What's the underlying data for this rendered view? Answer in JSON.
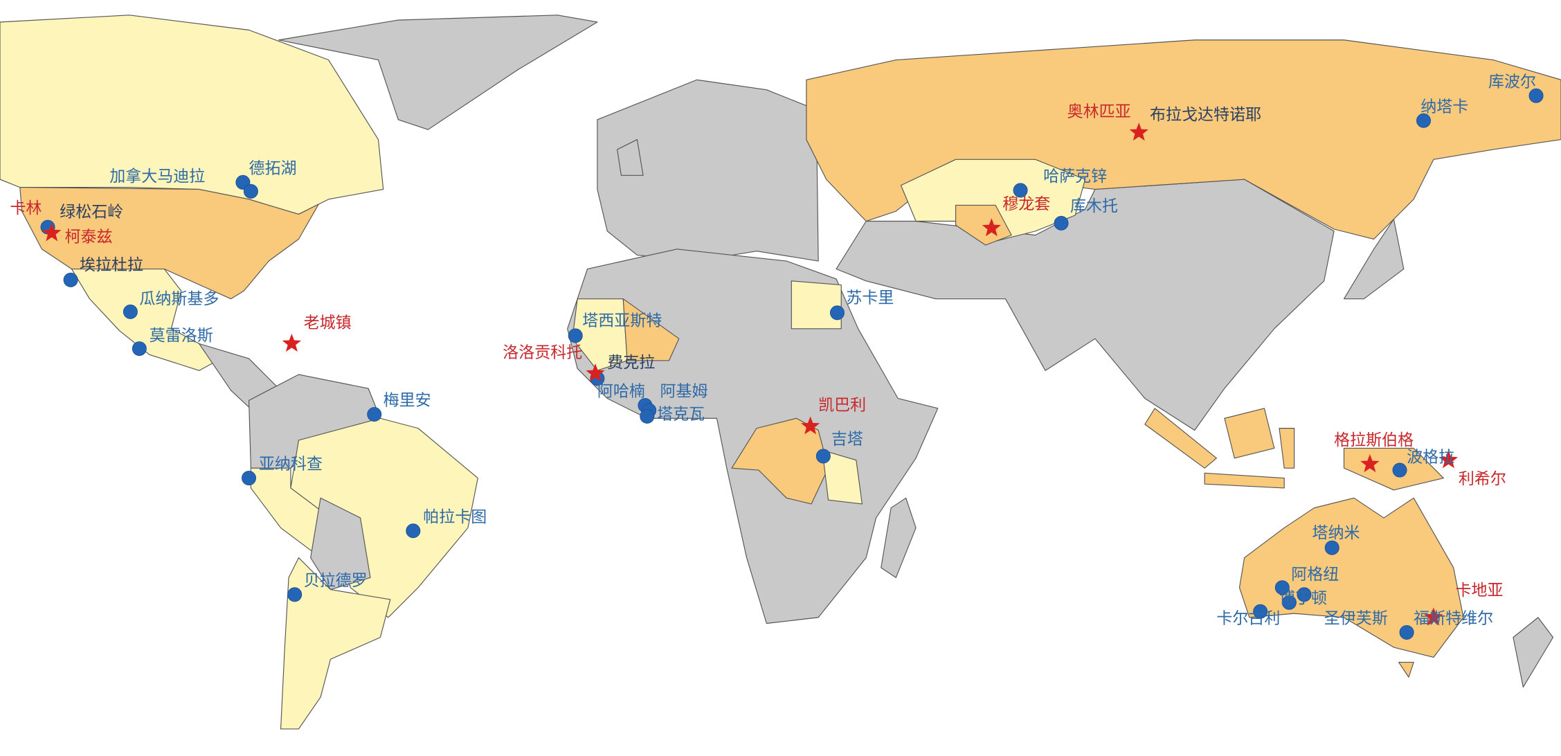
{
  "colors": {
    "gold_dot": "#2565b5",
    "star": "#d9221f",
    "label_blue": "#2e6aa8",
    "label_red": "#c8282b",
    "label_navy": "#2b3f63",
    "country_orange": "#f9c97c",
    "country_yellow": "#fdf5b9",
    "country_gray": "#c9c9c9"
  },
  "legend_icons": {
    "dot": "circle-marker-icon",
    "star": "star-marker-icon"
  },
  "markers": [
    {
      "name": "加拿大马迪拉",
      "marker": "dot",
      "label": "blue"
    },
    {
      "name": "德拓湖",
      "marker": "dot",
      "label": "blue"
    },
    {
      "name": "卡林",
      "marker": "none",
      "label": "red"
    },
    {
      "name": "绿松石岭",
      "marker": "dot",
      "label": "navy"
    },
    {
      "name": "柯泰兹",
      "marker": "star",
      "label": "red"
    },
    {
      "name": "埃拉杜拉",
      "marker": "dot",
      "label": "navy"
    },
    {
      "name": "瓜纳斯基多",
      "marker": "dot",
      "label": "blue"
    },
    {
      "name": "莫雷洛斯",
      "marker": "dot",
      "label": "blue"
    },
    {
      "name": "老城镇",
      "marker": "star",
      "label": "red"
    },
    {
      "name": "梅里安",
      "marker": "dot",
      "label": "blue"
    },
    {
      "name": "亚纳科查",
      "marker": "dot",
      "label": "blue"
    },
    {
      "name": "帕拉卡图",
      "marker": "dot",
      "label": "blue"
    },
    {
      "name": "贝拉德罗",
      "marker": "dot",
      "label": "blue"
    },
    {
      "name": "塔西亚斯特",
      "marker": "dot",
      "label": "blue"
    },
    {
      "name": "洛洛贡科托",
      "marker": "star",
      "label": "red"
    },
    {
      "name": "费克拉",
      "marker": "dot",
      "label": "navy"
    },
    {
      "name": "阿哈楠",
      "marker": "dot",
      "label": "blue"
    },
    {
      "name": "阿基姆",
      "marker": "dot",
      "label": "blue"
    },
    {
      "name": "塔克瓦",
      "marker": "dot",
      "label": "blue"
    },
    {
      "name": "苏卡里",
      "marker": "dot",
      "label": "blue"
    },
    {
      "name": "凯巴利",
      "marker": "star",
      "label": "red"
    },
    {
      "name": "吉塔",
      "marker": "dot",
      "label": "blue"
    },
    {
      "name": "奥林匹亚",
      "marker": "star",
      "label": "red"
    },
    {
      "name": "布拉戈达特诺耶",
      "marker": "none",
      "label": "navy"
    },
    {
      "name": "哈萨克锌",
      "marker": "dot",
      "label": "blue"
    },
    {
      "name": "穆龙套",
      "marker": "star",
      "label": "red"
    },
    {
      "name": "库木托",
      "marker": "dot",
      "label": "blue"
    },
    {
      "name": "纳塔卡",
      "marker": "dot",
      "label": "blue"
    },
    {
      "name": "库波尔",
      "marker": "dot",
      "label": "blue"
    },
    {
      "name": "格拉斯伯格",
      "marker": "star",
      "label": "red"
    },
    {
      "name": "波格拉",
      "marker": "dot",
      "label": "blue"
    },
    {
      "name": "利希尔",
      "marker": "star",
      "label": "red"
    },
    {
      "name": "塔纳米",
      "marker": "dot",
      "label": "blue"
    },
    {
      "name": "阿格纽",
      "marker": "dot",
      "label": "blue"
    },
    {
      "name": "博丁顿",
      "marker": "dot",
      "label": "blue"
    },
    {
      "name": "圣伊芙斯",
      "marker": "dot",
      "label": "blue"
    },
    {
      "name": "卡尔古利",
      "marker": "dot",
      "label": "blue"
    },
    {
      "name": "卡地亚",
      "marker": "star",
      "label": "red"
    },
    {
      "name": "福斯特维尔",
      "marker": "dot",
      "label": "blue"
    }
  ]
}
